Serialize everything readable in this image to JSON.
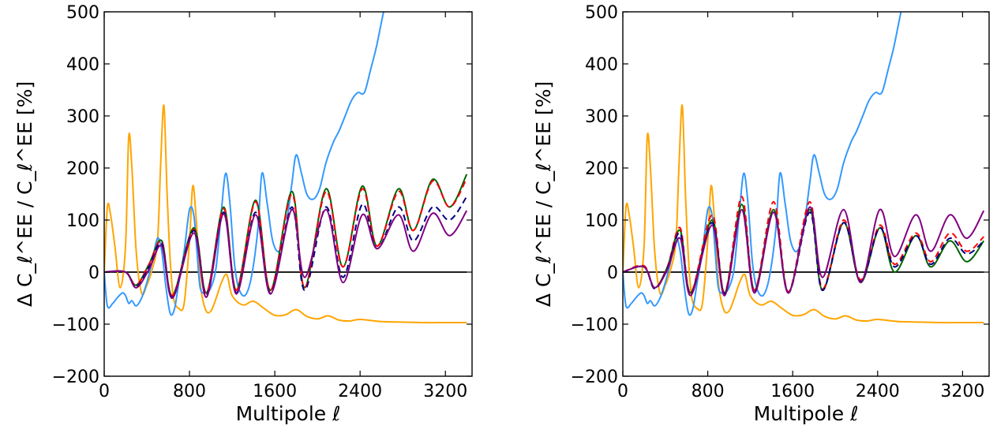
{
  "chart_data": [
    {
      "type": "line",
      "panel": "left",
      "xlabel": "Multipole ℓ",
      "ylabel": "Δ C_ℓ^EE / C_ℓ^EE [%]",
      "xlim": [
        0,
        3450
      ],
      "ylim": [
        -200,
        500
      ],
      "xticks": [
        0,
        800,
        1600,
        2400,
        3200
      ],
      "yticks": [
        -200,
        -100,
        0,
        100,
        200,
        300,
        400,
        500
      ],
      "xtick_labels": [
        "0",
        "800",
        "1600",
        "2400",
        "3200"
      ],
      "ytick_labels": [
        "−200",
        "−100",
        "0",
        "100",
        "200",
        "300",
        "400",
        "500"
      ],
      "grid": false,
      "series": [
        {
          "color": "#000000",
          "style": "solid",
          "x": [
            0,
            3400
          ],
          "y": [
            0,
            0
          ]
        },
        {
          "color": "#ffa500",
          "style": "solid",
          "x": [
            0,
            30,
            60,
            100,
            150,
            200,
            230,
            260,
            300,
            350,
            400,
            450,
            500,
            530,
            560,
            590,
            620,
            650,
            700,
            750,
            800,
            830,
            860,
            900,
            950,
            1000,
            1050,
            1100,
            1150,
            1200,
            1300,
            1400,
            1500,
            1600,
            1700,
            1800,
            1900,
            2000,
            2100,
            2200,
            2300,
            2400,
            2600,
            2800,
            3000,
            3200,
            3400
          ],
          "y": [
            0,
            125,
            110,
            50,
            -30,
            50,
            260,
            200,
            40,
            -40,
            -25,
            5,
            60,
            210,
            320,
            150,
            20,
            -50,
            -70,
            -60,
            60,
            165,
            110,
            -20,
            -72,
            -75,
            -50,
            -20,
            -5,
            -45,
            -63,
            -56,
            -70,
            -83,
            -82,
            -72,
            -85,
            -90,
            -84,
            -92,
            -94,
            -91,
            -95,
            -96,
            -97,
            -97,
            -97
          ]
        },
        {
          "color": "#3399ff",
          "style": "solid",
          "x": [
            0,
            30,
            80,
            120,
            170,
            200,
            230,
            260,
            300,
            350,
            400,
            450,
            500,
            540,
            580,
            620,
            660,
            700,
            750,
            800,
            840,
            870,
            900,
            950,
            1000,
            1050,
            1100,
            1140,
            1180,
            1220,
            1260,
            1320,
            1380,
            1440,
            1480,
            1530,
            1580,
            1640,
            1700,
            1760,
            1800,
            1850,
            1900,
            1960,
            2020,
            2080,
            2150,
            2200,
            2260,
            2320,
            2380,
            2420,
            2450,
            2500,
            2550,
            2600,
            2640
          ],
          "y": [
            0,
            -65,
            -60,
            -50,
            -40,
            -45,
            -60,
            -55,
            -65,
            -50,
            -20,
            20,
            65,
            40,
            -30,
            -80,
            -70,
            -20,
            40,
            120,
            110,
            40,
            -30,
            -40,
            -30,
            10,
            120,
            190,
            130,
            20,
            -30,
            -45,
            -10,
            80,
            190,
            130,
            60,
            40,
            80,
            170,
            225,
            190,
            150,
            140,
            160,
            210,
            250,
            270,
            300,
            330,
            345,
            342,
            350,
            390,
            430,
            480,
            520
          ]
        },
        {
          "color": "#006400",
          "style": "solid",
          "x": [
            0,
            200,
            300,
            420,
            540,
            640,
            840,
            960,
            1120,
            1240,
            1420,
            1560,
            1760,
            1880,
            2080,
            2240,
            2420,
            2560,
            2760,
            2900,
            3080,
            3240,
            3400
          ],
          "y": [
            0,
            0,
            -25,
            15,
            60,
            -45,
            85,
            -40,
            125,
            -35,
            138,
            -35,
            155,
            -30,
            160,
            10,
            165,
            50,
            160,
            80,
            178,
            125,
            188
          ]
        },
        {
          "color": "#ff0000",
          "style": "dashed",
          "x": [
            0,
            200,
            300,
            420,
            540,
            640,
            840,
            960,
            1120,
            1240,
            1420,
            1560,
            1760,
            1880,
            2080,
            2240,
            2420,
            2560,
            2760,
            2900,
            3080,
            3240,
            3400
          ],
          "y": [
            0,
            0,
            -25,
            15,
            58,
            -45,
            82,
            -40,
            122,
            -35,
            135,
            -35,
            150,
            -30,
            155,
            10,
            160,
            50,
            155,
            80,
            175,
            125,
            180
          ]
        },
        {
          "color": "#000080",
          "style": "dashed",
          "x": [
            0,
            200,
            300,
            420,
            540,
            640,
            840,
            960,
            1120,
            1240,
            1420,
            1560,
            1760,
            1880,
            2080,
            2240,
            2420,
            2560,
            2760,
            2900,
            3080,
            3240,
            3400
          ],
          "y": [
            0,
            0,
            -28,
            10,
            55,
            -48,
            80,
            -45,
            115,
            -40,
            115,
            -40,
            125,
            -35,
            125,
            -10,
            130,
            45,
            125,
            60,
            125,
            100,
            145
          ]
        },
        {
          "color": "#800080",
          "style": "solid",
          "x": [
            0,
            200,
            300,
            420,
            540,
            640,
            840,
            960,
            1120,
            1240,
            1420,
            1560,
            1760,
            1880,
            2080,
            2240,
            2420,
            2560,
            2760,
            2900,
            3080,
            3240,
            3400
          ],
          "y": [
            0,
            0,
            -30,
            5,
            50,
            -50,
            75,
            -48,
            112,
            -42,
            110,
            -42,
            120,
            -10,
            120,
            -20,
            110,
            45,
            110,
            40,
            113,
            70,
            118
          ]
        }
      ]
    },
    {
      "type": "line",
      "panel": "right",
      "xlabel": "Multipole ℓ",
      "ylabel": "Δ C_ℓ^EE / C_ℓ^EE [%]",
      "xlim": [
        0,
        3450
      ],
      "ylim": [
        -200,
        500
      ],
      "xticks": [
        0,
        800,
        1600,
        2400,
        3200
      ],
      "yticks": [
        -200,
        -100,
        0,
        100,
        200,
        300,
        400,
        500
      ],
      "xtick_labels": [
        "0",
        "800",
        "1600",
        "2400",
        "3200"
      ],
      "ytick_labels": [
        "−200",
        "−100",
        "0",
        "100",
        "200",
        "300",
        "400",
        "500"
      ],
      "grid": false,
      "series": [
        {
          "color": "#000000",
          "style": "solid",
          "x": [
            0,
            3400
          ],
          "y": [
            0,
            0
          ]
        },
        {
          "color": "#ffa500",
          "style": "solid",
          "x": [
            0,
            30,
            60,
            100,
            150,
            200,
            230,
            260,
            300,
            350,
            400,
            450,
            500,
            530,
            560,
            590,
            620,
            650,
            700,
            750,
            800,
            830,
            860,
            900,
            950,
            1000,
            1050,
            1100,
            1150,
            1200,
            1300,
            1400,
            1500,
            1600,
            1700,
            1800,
            1900,
            2000,
            2100,
            2200,
            2300,
            2400,
            2600,
            2800,
            3000,
            3200,
            3400
          ],
          "y": [
            0,
            125,
            110,
            50,
            -30,
            50,
            260,
            200,
            40,
            -40,
            -25,
            5,
            60,
            210,
            320,
            150,
            20,
            -50,
            -70,
            -60,
            60,
            165,
            110,
            -20,
            -72,
            -75,
            -50,
            -20,
            -5,
            -45,
            -63,
            -56,
            -70,
            -83,
            -82,
            -72,
            -85,
            -90,
            -84,
            -92,
            -94,
            -91,
            -95,
            -96,
            -97,
            -97,
            -97
          ]
        },
        {
          "color": "#3399ff",
          "style": "solid",
          "x": [
            0,
            30,
            80,
            120,
            170,
            200,
            230,
            260,
            300,
            350,
            400,
            450,
            500,
            540,
            580,
            620,
            660,
            700,
            750,
            800,
            840,
            870,
            900,
            950,
            1000,
            1050,
            1100,
            1140,
            1180,
            1220,
            1260,
            1320,
            1380,
            1440,
            1480,
            1530,
            1580,
            1640,
            1700,
            1760,
            1800,
            1850,
            1900,
            1960,
            2020,
            2080,
            2150,
            2200,
            2260,
            2320,
            2380,
            2420,
            2450,
            2500,
            2550,
            2600,
            2640
          ],
          "y": [
            0,
            -65,
            -60,
            -50,
            -40,
            -45,
            -60,
            -55,
            -65,
            -50,
            -20,
            20,
            65,
            40,
            -30,
            -80,
            -70,
            -20,
            40,
            120,
            110,
            40,
            -30,
            -40,
            -30,
            10,
            120,
            190,
            130,
            20,
            -30,
            -45,
            -10,
            80,
            190,
            130,
            60,
            40,
            80,
            170,
            225,
            190,
            150,
            140,
            160,
            210,
            250,
            270,
            300,
            330,
            345,
            342,
            350,
            390,
            430,
            480,
            520
          ]
        },
        {
          "color": "#006400",
          "style": "solid",
          "x": [
            0,
            200,
            300,
            420,
            540,
            640,
            840,
            960,
            1120,
            1240,
            1420,
            1560,
            1760,
            1880,
            2080,
            2240,
            2420,
            2560,
            2760,
            2900,
            3080,
            3240,
            3400
          ],
          "y": [
            0,
            10,
            -30,
            10,
            80,
            -40,
            100,
            -40,
            130,
            -35,
            120,
            -38,
            120,
            -35,
            95,
            -20,
            85,
            0,
            70,
            10,
            60,
            20,
            60
          ]
        },
        {
          "color": "#ff0000",
          "style": "dashed",
          "x": [
            0,
            200,
            300,
            420,
            540,
            640,
            840,
            960,
            1120,
            1240,
            1420,
            1560,
            1760,
            1880,
            2080,
            2240,
            2420,
            2560,
            2760,
            2900,
            3080,
            3240,
            3400
          ],
          "y": [
            0,
            12,
            -30,
            10,
            85,
            -40,
            110,
            -40,
            145,
            -35,
            135,
            -38,
            135,
            -32,
            100,
            -15,
            90,
            15,
            75,
            20,
            75,
            40,
            68
          ]
        },
        {
          "color": "#000080",
          "style": "dashed",
          "x": [
            0,
            200,
            300,
            420,
            540,
            640,
            840,
            960,
            1120,
            1240,
            1420,
            1560,
            1760,
            1880,
            2080,
            2240,
            2420,
            2560,
            2760,
            2900,
            3080,
            3240,
            3400
          ],
          "y": [
            0,
            10,
            -32,
            8,
            75,
            -42,
            95,
            -42,
            120,
            -38,
            115,
            -40,
            115,
            -35,
            95,
            -18,
            85,
            10,
            70,
            15,
            65,
            35,
            60
          ]
        },
        {
          "color": "#800080",
          "style": "solid",
          "x": [
            0,
            200,
            300,
            420,
            540,
            640,
            840,
            960,
            1120,
            1240,
            1420,
            1560,
            1760,
            1880,
            2080,
            2240,
            2420,
            2560,
            2760,
            2900,
            3080,
            3240,
            3400
          ],
          "y": [
            0,
            10,
            -30,
            5,
            65,
            -45,
            90,
            -45,
            120,
            -40,
            115,
            -40,
            125,
            -10,
            120,
            -20,
            120,
            30,
            110,
            40,
            110,
            65,
            118
          ]
        }
      ]
    }
  ]
}
